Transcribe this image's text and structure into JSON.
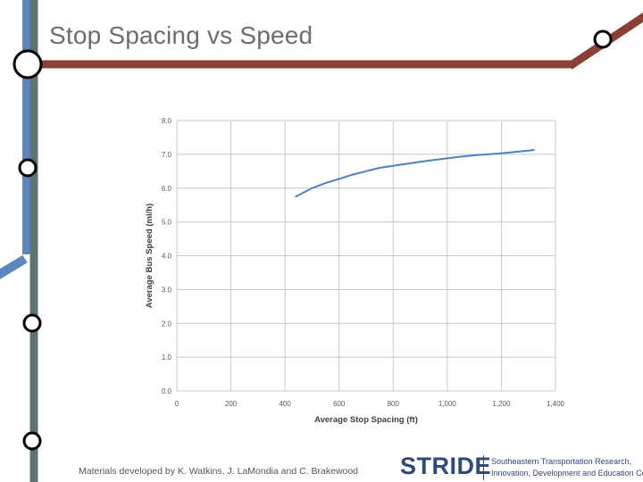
{
  "slide": {
    "title": "Stop Spacing vs Speed",
    "footer_credit": "Materials developed by K. Watkins, J. LaMondia and C. Brakewood",
    "logo_text": "STRIDE",
    "logo_tagline": [
      "Southeastern Transportation Research,",
      "Innovation, Development and Education Center"
    ]
  },
  "colors": {
    "line_blue": "#5b86c2",
    "line_gray": "#5f7373",
    "line_brown": "#8b3f35",
    "series": "#4f81bd",
    "grid": "#c8c8c8",
    "brand": "#2e4a7a"
  },
  "chart_data": {
    "type": "line",
    "title": "",
    "xlabel": "Average Stop Spacing (ft)",
    "ylabel": "Average Bus Speed (mi/h)",
    "xlim": [
      0,
      1400
    ],
    "ylim": [
      0,
      8
    ],
    "x_ticks": [
      0,
      200,
      400,
      600,
      800,
      1000,
      1200,
      1400
    ],
    "x_tick_labels": [
      "0",
      "200",
      "400",
      "600",
      "800",
      "1,000",
      "1,200",
      "1,400"
    ],
    "y_ticks": [
      0,
      1,
      2,
      3,
      4,
      5,
      6,
      7,
      8
    ],
    "y_tick_labels": [
      "0.0",
      "1.0",
      "2.0",
      "3.0",
      "4.0",
      "5.0",
      "6.0",
      "7.0",
      "8.0"
    ],
    "grid": true,
    "legend": "none",
    "series": [
      {
        "x": [
          440,
          500,
          550,
          600,
          650,
          700,
          750,
          800,
          850,
          900,
          950,
          1000,
          1050,
          1100,
          1150,
          1200,
          1250,
          1300,
          1320
        ],
        "y": [
          5.75,
          6.0,
          6.15,
          6.27,
          6.4,
          6.5,
          6.6,
          6.66,
          6.72,
          6.78,
          6.83,
          6.88,
          6.93,
          6.97,
          7.0,
          7.03,
          7.07,
          7.11,
          7.13
        ]
      }
    ]
  }
}
